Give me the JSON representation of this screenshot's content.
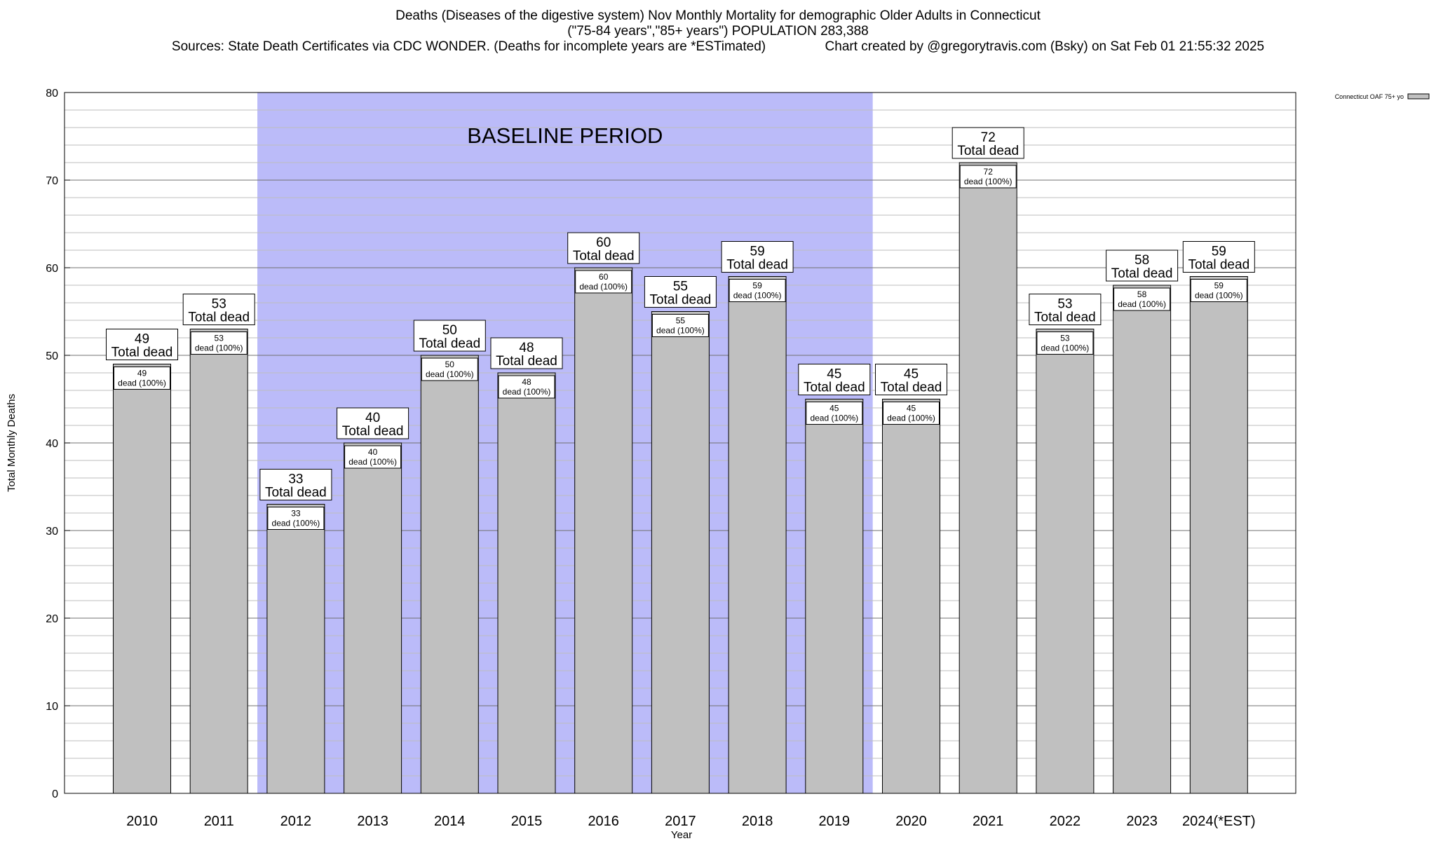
{
  "titles": {
    "line1": "Deaths (Diseases of the digestive system) Nov Monthly Mortality for demographic Older Adults in Connecticut",
    "line2": "(\"75-84 years\",\"85+ years\") POPULATION 283,388",
    "line3": "Sources: State Death Certificates via CDC WONDER. (Deaths for incomplete years are *ESTimated)                Chart created by @gregorytravis.com (Bsky) on Sat Feb 01 21:55:32 2025"
  },
  "colors": {
    "bar": "#c0c0c0",
    "baseline": "#bbbbf9",
    "grid": "#bdbdbd"
  },
  "chart_data": {
    "type": "bar",
    "xlabel": "Year",
    "ylabel": "Total Monthly Deaths",
    "ylim": [
      0,
      80
    ],
    "yticks": [
      0,
      10,
      20,
      30,
      40,
      50,
      60,
      70,
      80
    ],
    "grid": true,
    "legend": {
      "position": "top-right",
      "label": "Connecticut OAF 75+ yo"
    },
    "baseline": {
      "label": "BASELINE PERIOD",
      "from": "2012",
      "to": "2019"
    },
    "categories": [
      "2010",
      "2011",
      "2012",
      "2013",
      "2014",
      "2015",
      "2016",
      "2017",
      "2018",
      "2019",
      "2020",
      "2021",
      "2022",
      "2023",
      "2024(*EST)"
    ],
    "series": [
      {
        "name": "Connecticut OAF 75+ yo",
        "values": [
          49,
          53,
          33,
          40,
          50,
          48,
          60,
          55,
          59,
          45,
          45,
          72,
          53,
          58,
          59
        ]
      }
    ],
    "total_label": "Total dead",
    "inner_label": "dead (100%)"
  }
}
